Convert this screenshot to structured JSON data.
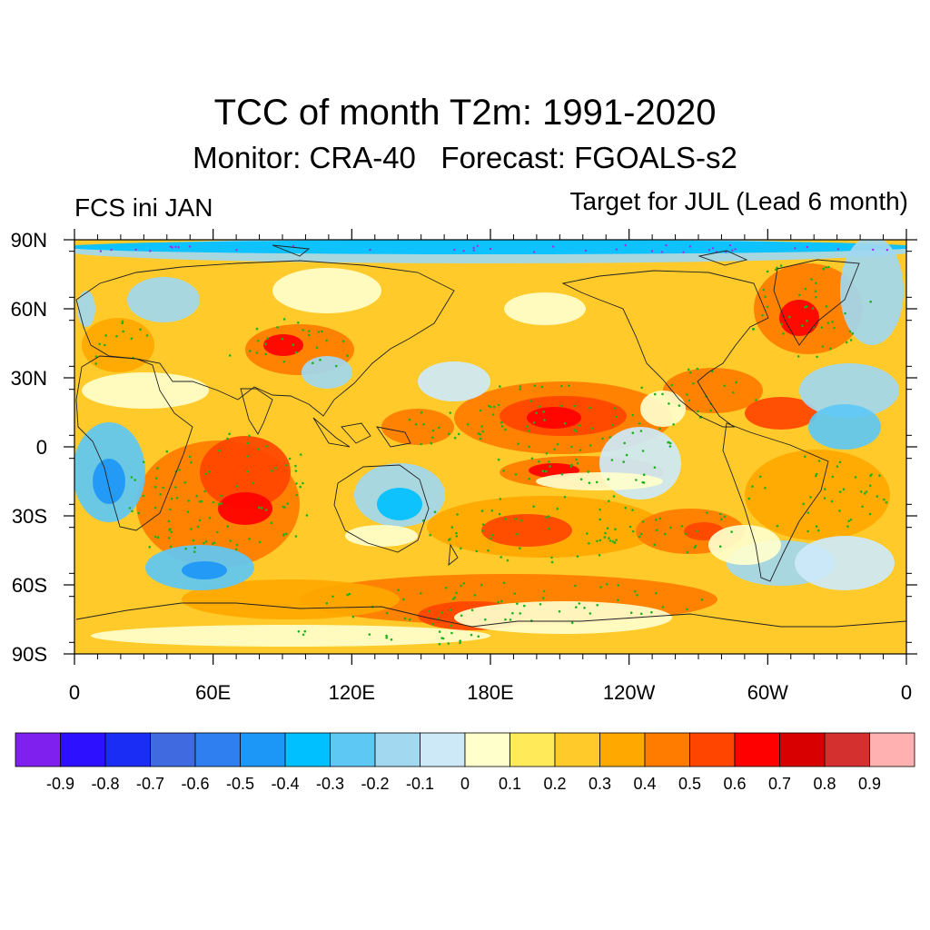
{
  "header": {
    "title": "TCC of month T2m: 1991-2020",
    "subtitle": "Monitor: CRA-40   Forecast: FGOALS-s2",
    "left_label": "FCS ini JAN",
    "right_label": "Target for JUL (Lead 6 month)"
  },
  "map": {
    "lat_ticks": [
      "90N",
      "60N",
      "30N",
      "0",
      "30S",
      "60S",
      "90S"
    ],
    "lon_ticks": [
      "0",
      "60E",
      "120E",
      "180E",
      "120W",
      "60W",
      "0"
    ],
    "colorbar": {
      "colors": [
        "#8020ef",
        "#2c10ff",
        "#1a2df5",
        "#3f6ae0",
        "#2f7ff0",
        "#1d97f7",
        "#00c0ff",
        "#5ec8f5",
        "#a2d8f0",
        "#cde9f8",
        "#ffffcc",
        "#ffea5a",
        "#ffca2a",
        "#ffa800",
        "#ff7c00",
        "#ff4500",
        "#ff0000",
        "#d80000",
        "#d43030",
        "#ffb0b0"
      ],
      "labels": [
        "-0.9",
        "-0.8",
        "-0.7",
        "-0.6",
        "-0.5",
        "-0.4",
        "-0.3",
        "-0.2",
        "-0.1",
        "0",
        "0.1",
        "0.2",
        "0.3",
        "0.4",
        "0.5",
        "0.6",
        "0.7",
        "0.8",
        "0.9"
      ]
    }
  }
}
